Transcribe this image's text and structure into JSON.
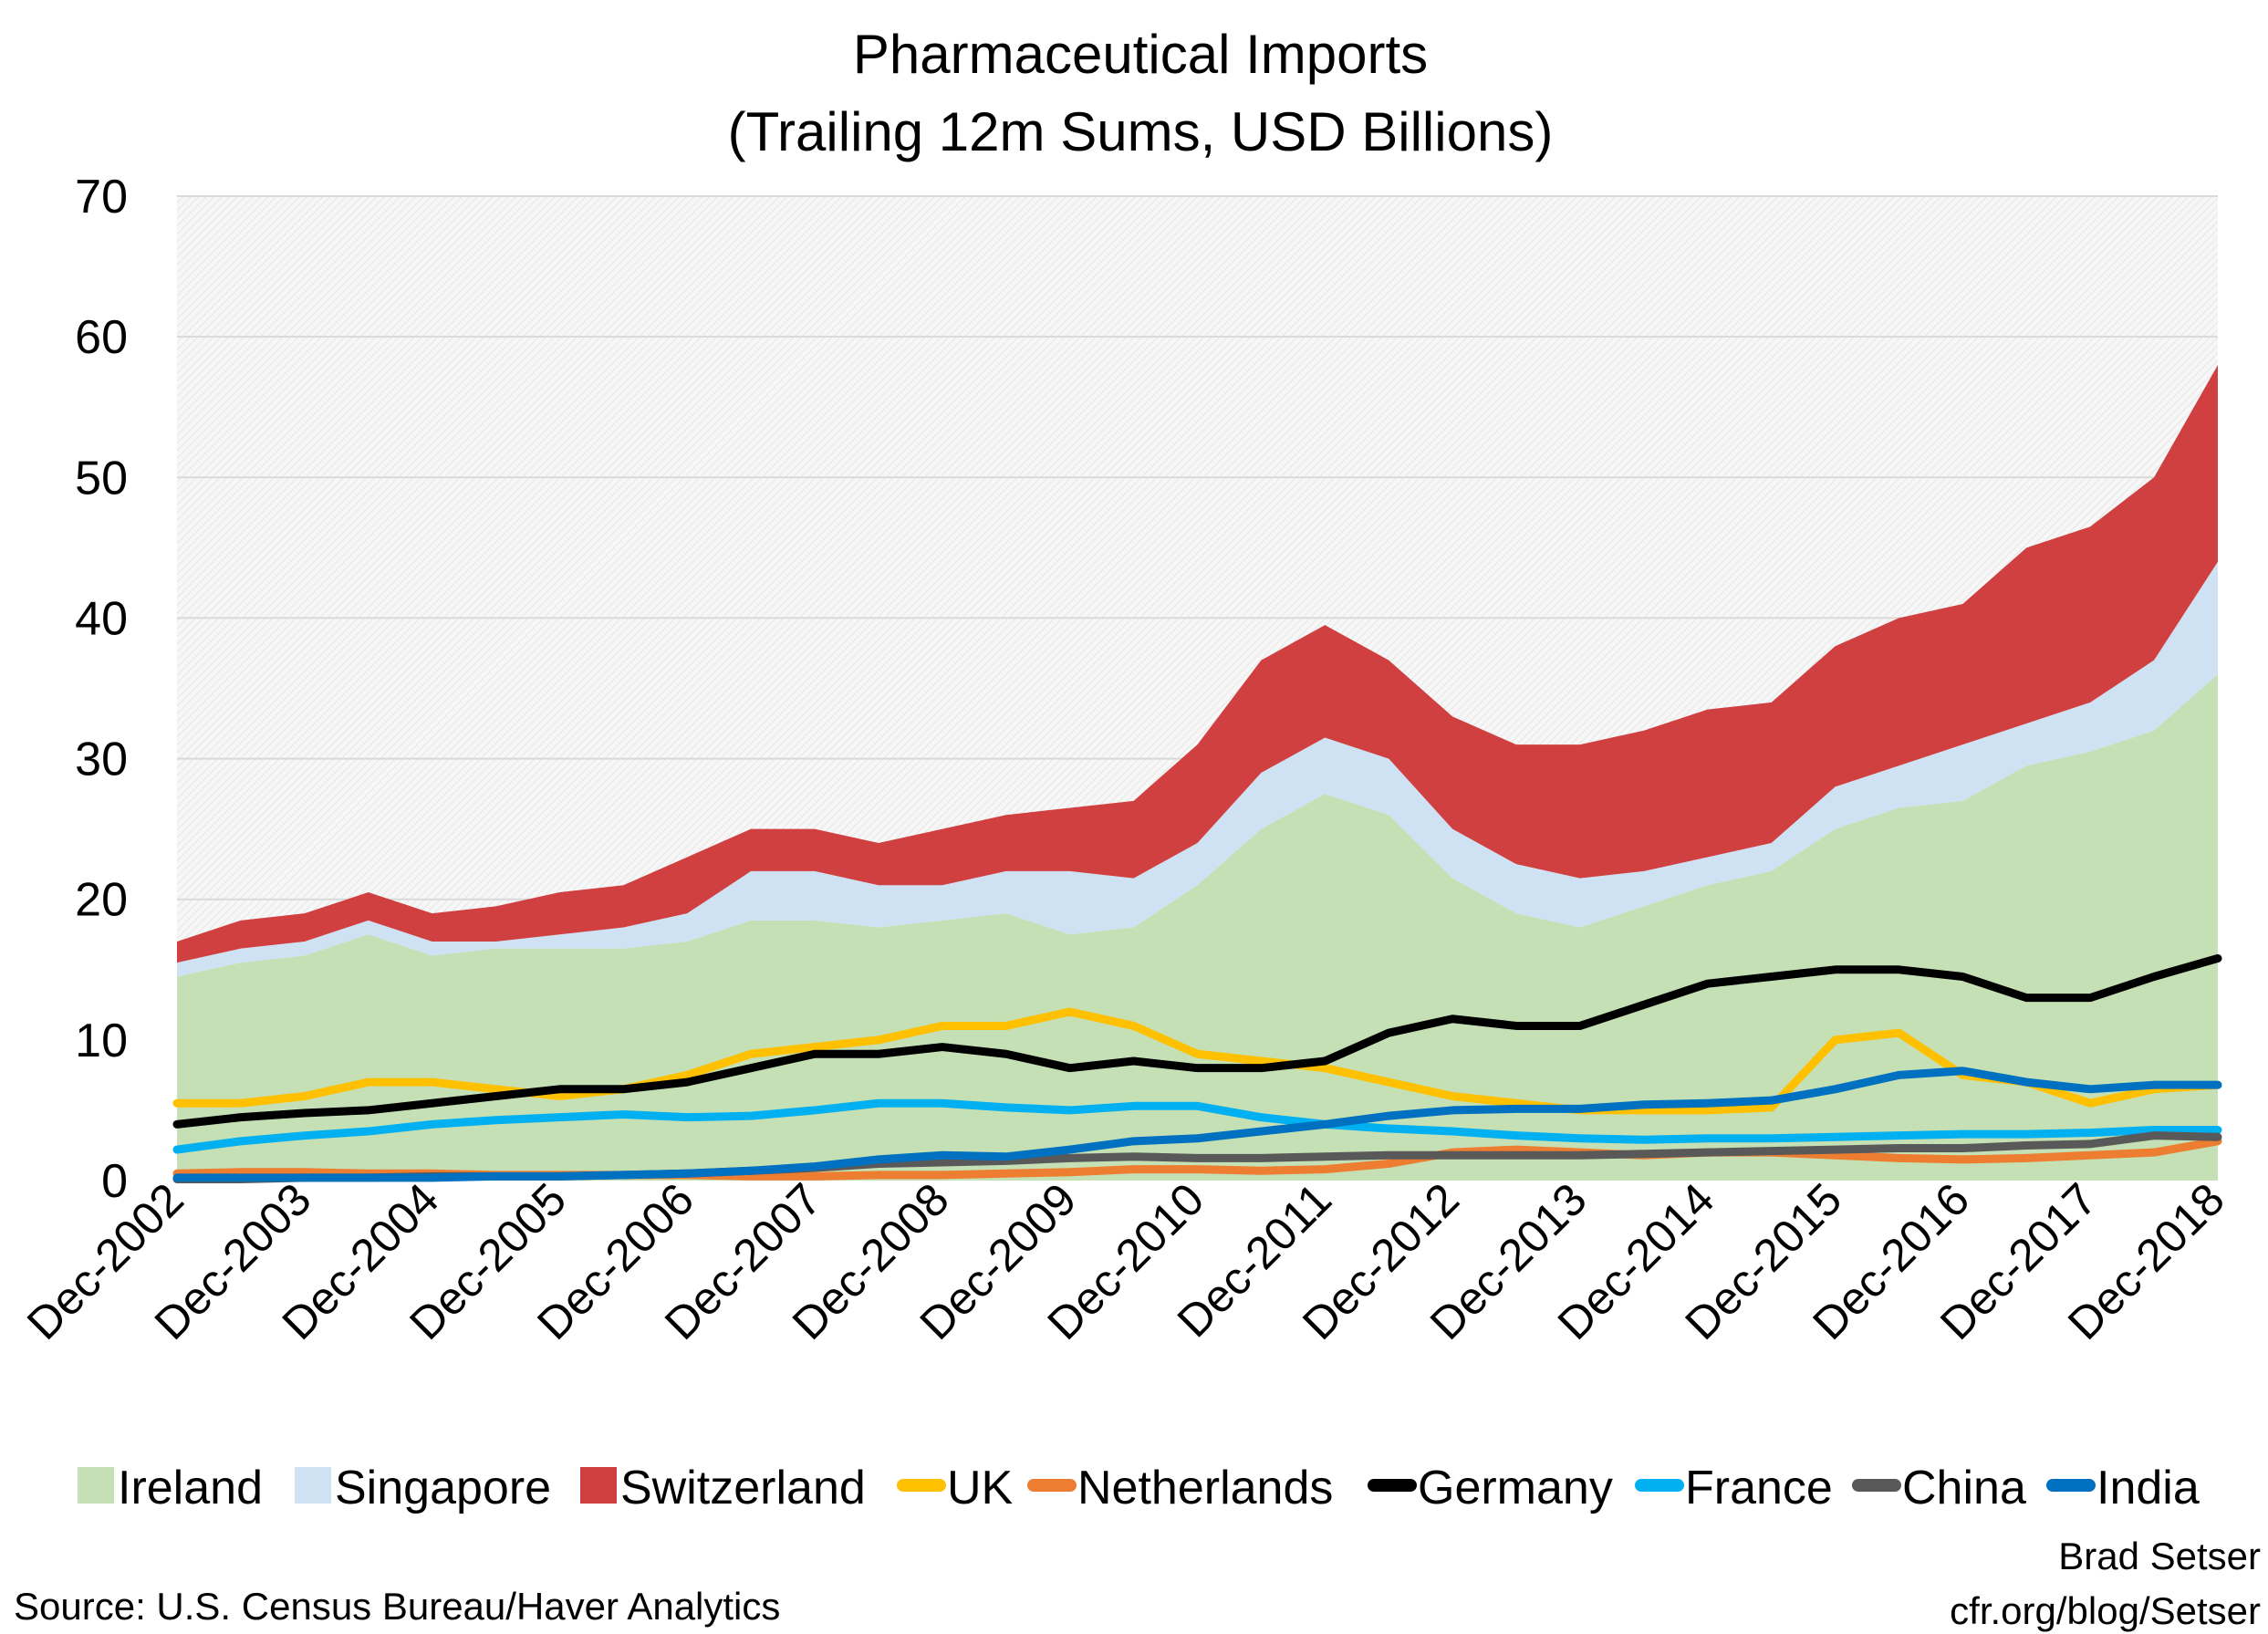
{
  "chart_data": {
    "type": "area",
    "title": "Pharmaceutical Imports",
    "subtitle": "(Trailing 12m Sums, USD Billions)",
    "xlabel": "",
    "ylabel": "",
    "ylim": [
      0,
      70
    ],
    "yticks": [
      "0",
      "10",
      "20",
      "30",
      "40",
      "50",
      "60",
      "70"
    ],
    "xtick_labels": [
      "Dec-2002",
      "Dec-2003",
      "Dec-2004",
      "Dec-2005",
      "Dec-2006",
      "Dec-2007",
      "Dec-2008",
      "Dec-2009",
      "Dec-2010",
      "Dec-2011",
      "Dec-2012",
      "Dec-2013",
      "Dec-2014",
      "Dec-2015",
      "Dec-2016",
      "Dec-2017",
      "Dec-2018"
    ],
    "grid": true,
    "legend_placement": "bottom",
    "x": [
      "2002-12",
      "2003-06",
      "2003-12",
      "2004-06",
      "2004-12",
      "2005-06",
      "2005-12",
      "2006-06",
      "2006-12",
      "2007-06",
      "2007-12",
      "2008-06",
      "2008-12",
      "2009-06",
      "2009-12",
      "2010-06",
      "2010-12",
      "2011-06",
      "2011-12",
      "2012-06",
      "2012-12",
      "2013-06",
      "2013-12",
      "2014-06",
      "2014-12",
      "2015-06",
      "2015-12",
      "2016-06",
      "2016-12",
      "2017-06",
      "2017-12",
      "2018-06",
      "2018-12"
    ],
    "stacked_areas": [
      {
        "name": "Ireland",
        "color": "#c5e0b4",
        "values": [
          14.5,
          15.5,
          16,
          17.5,
          16,
          16.5,
          16.5,
          16.5,
          17,
          18.5,
          18.5,
          18,
          18.5,
          19,
          17.5,
          18,
          21,
          25,
          27.5,
          26,
          21.5,
          19,
          18,
          19.5,
          21,
          22,
          25,
          26.5,
          27,
          29.5,
          30.5,
          32,
          36
        ]
      },
      {
        "name": "Singapore",
        "color": "#cfe2f3",
        "values": [
          1,
          1,
          1,
          1,
          1,
          0.5,
          1,
          1.5,
          2,
          3.5,
          3.5,
          3,
          2.5,
          3,
          4.5,
          3.5,
          3,
          4,
          4,
          4,
          3.5,
          3.5,
          3.5,
          2.5,
          2,
          2,
          3,
          3,
          4,
          3,
          3.5,
          5,
          8
        ]
      },
      {
        "name": "Switzerland",
        "color": "#d04040",
        "values": [
          1.5,
          2,
          2,
          2,
          2,
          2.5,
          3,
          3,
          4,
          3,
          3,
          3,
          4,
          4,
          4.5,
          5.5,
          7,
          8,
          8,
          7,
          8,
          8.5,
          9.5,
          10,
          10.5,
          10,
          10,
          10.5,
          10,
          12.5,
          12.5,
          13,
          14
        ]
      }
    ],
    "lines": [
      {
        "name": "UK",
        "color": "#ffc000",
        "values": [
          5.5,
          5.5,
          6,
          7,
          7,
          6.5,
          6,
          6.5,
          7.5,
          9,
          9.5,
          10,
          11,
          11,
          12,
          11,
          9,
          8.5,
          8,
          7,
          6,
          5.5,
          5,
          5,
          5,
          5.2,
          10,
          10.5,
          7.5,
          7,
          5.5,
          6.5,
          6.8
        ]
      },
      {
        "name": "Netherlands",
        "color": "#ed7d31",
        "values": [
          0.5,
          0.6,
          0.6,
          0.5,
          0.5,
          0.4,
          0.4,
          0.4,
          0.4,
          0.3,
          0.3,
          0.4,
          0.4,
          0.5,
          0.6,
          0.8,
          0.8,
          0.7,
          0.8,
          1.2,
          2,
          2.2,
          2,
          1.8,
          2,
          2,
          1.8,
          1.6,
          1.5,
          1.6,
          1.8,
          2,
          2.8
        ]
      },
      {
        "name": "Germany",
        "color": "#000000",
        "values": [
          4,
          4.5,
          4.8,
          5,
          5.5,
          6,
          6.5,
          6.5,
          7,
          8,
          9,
          9,
          9.5,
          9,
          8,
          8.5,
          8,
          8,
          8.5,
          10.5,
          11.5,
          11,
          11,
          12.5,
          14,
          14.5,
          15,
          15,
          14.5,
          13,
          13,
          14.5,
          15.8
        ]
      },
      {
        "name": "France",
        "color": "#00b0f0",
        "values": [
          2.2,
          2.8,
          3.2,
          3.5,
          4,
          4.3,
          4.5,
          4.7,
          4.5,
          4.6,
          5,
          5.5,
          5.5,
          5.2,
          5,
          5.3,
          5.3,
          4.5,
          4,
          3.7,
          3.5,
          3.2,
          3,
          2.9,
          3,
          3,
          3.1,
          3.2,
          3.3,
          3.3,
          3.4,
          3.6,
          3.6
        ]
      },
      {
        "name": "China",
        "color": "#595959",
        "values": [
          0.1,
          0.1,
          0.2,
          0.2,
          0.3,
          0.3,
          0.3,
          0.4,
          0.5,
          0.7,
          0.9,
          1.2,
          1.3,
          1.4,
          1.6,
          1.7,
          1.6,
          1.6,
          1.7,
          1.8,
          1.8,
          1.8,
          1.8,
          1.9,
          2,
          2.1,
          2.2,
          2.3,
          2.3,
          2.5,
          2.6,
          3.2,
          3.1
        ]
      },
      {
        "name": "India",
        "color": "#0070c0",
        "values": [
          0.2,
          0.2,
          0.2,
          0.2,
          0.2,
          0.3,
          0.3,
          0.4,
          0.5,
          0.7,
          1,
          1.5,
          1.8,
          1.7,
          2.2,
          2.8,
          3,
          3.5,
          4,
          4.6,
          5,
          5.1,
          5.1,
          5.4,
          5.5,
          5.7,
          6.5,
          7.5,
          7.8,
          7,
          6.5,
          6.8,
          6.8
        ]
      }
    ]
  },
  "footer": {
    "source": "Source: U.S. Census Bureau/Haver Analytics",
    "author": "Brad Setser",
    "url": "cfr.org/blog/Setser"
  }
}
